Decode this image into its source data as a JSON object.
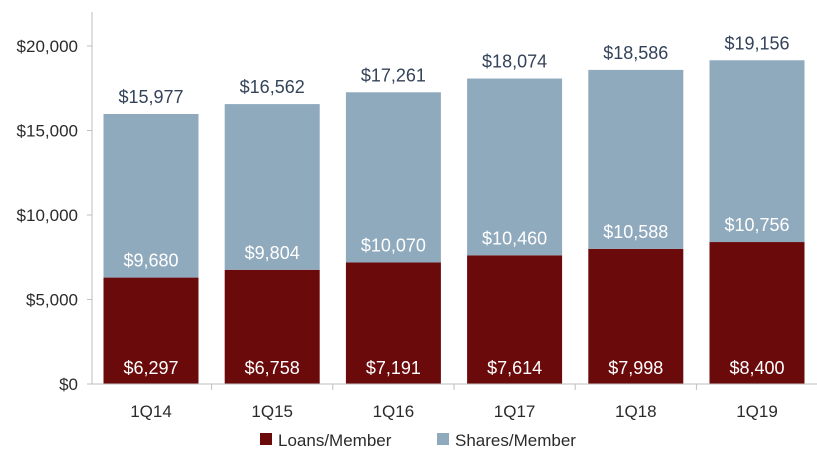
{
  "chart_data": {
    "type": "bar",
    "stacked": true,
    "categories": [
      "1Q14",
      "1Q15",
      "1Q16",
      "1Q17",
      "1Q18",
      "1Q19"
    ],
    "series": [
      {
        "name": "Loans/Member",
        "values": [
          6297,
          6758,
          7191,
          7614,
          7998,
          8400
        ],
        "labels": [
          "$6,297",
          "$6,758",
          "$7,191",
          "$7,614",
          "$7,998",
          "$8,400"
        ],
        "color": "#6b0a0b"
      },
      {
        "name": "Shares/Member",
        "values": [
          9680,
          9804,
          10070,
          10460,
          10588,
          10756
        ],
        "labels": [
          "$9,680",
          "$9,804",
          "$10,070",
          "$10,460",
          "$10,588",
          "$10,756"
        ],
        "color": "#8fa9bd"
      }
    ],
    "totals": [
      15977,
      16562,
      17261,
      18074,
      18586,
      19156
    ],
    "total_labels": [
      "$15,977",
      "$16,562",
      "$17,261",
      "$18,074",
      "$18,586",
      "$19,156"
    ],
    "y_ticks": [
      0,
      5000,
      10000,
      15000,
      20000
    ],
    "y_tick_labels": [
      "$0",
      "$5,000",
      "$10,000",
      "$15,000",
      "$20,000"
    ],
    "ylim": [
      0,
      22000
    ],
    "grid": false,
    "legend_position": "bottom"
  }
}
